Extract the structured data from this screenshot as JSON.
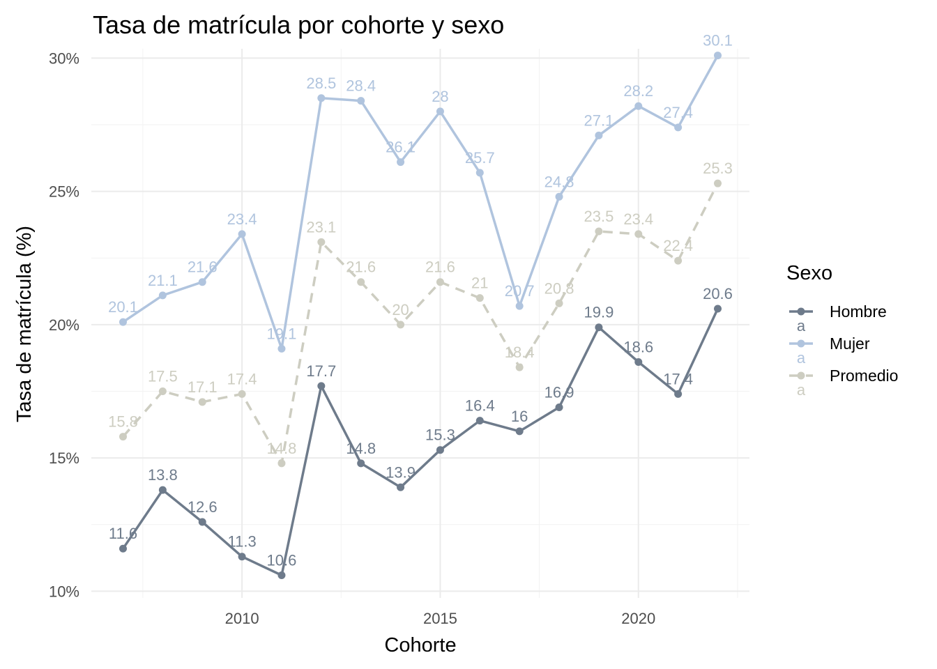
{
  "chart_data": {
    "type": "line",
    "title": "Tasa de matrícula por cohorte y sexo",
    "xlabel": "Cohorte",
    "ylabel": "Tasa de matrícula (%)",
    "x": [
      2007,
      2008,
      2009,
      2010,
      2011,
      2012,
      2013,
      2014,
      2015,
      2016,
      2017,
      2018,
      2019,
      2020,
      2021,
      2022
    ],
    "xlim": [
      2006.2,
      2022.8
    ],
    "ylim": [
      9.75,
      30.35
    ],
    "x_ticks": [
      2010,
      2015,
      2020
    ],
    "x_tick_labels": [
      "2010",
      "2015",
      "2020"
    ],
    "y_ticks": [
      10,
      15,
      20,
      25,
      30
    ],
    "y_tick_labels": [
      "10%",
      "15%",
      "20%",
      "25%",
      "30%"
    ],
    "grid": true,
    "legend": {
      "title": "Sexo",
      "position": "right",
      "key_glyph": "a"
    },
    "series": [
      {
        "name": "Hombre",
        "color": "#6e7b8b",
        "dashed": false,
        "values": [
          11.6,
          13.8,
          12.6,
          11.3,
          10.6,
          17.7,
          14.8,
          13.9,
          15.3,
          16.4,
          16.0,
          16.9,
          19.9,
          18.6,
          17.4,
          20.6
        ],
        "labels": [
          "11.6",
          "13.8",
          "12.6",
          "11.3",
          "10.6",
          "17.7",
          "14.8",
          "13.9",
          "15.3",
          "16.4",
          "16",
          "16.9",
          "19.9",
          "18.6",
          "17.4",
          "20.6"
        ]
      },
      {
        "name": "Mujer",
        "color": "#b0c4de",
        "dashed": false,
        "values": [
          20.1,
          21.1,
          21.6,
          23.4,
          19.1,
          28.5,
          28.4,
          26.1,
          28.0,
          25.7,
          20.7,
          24.8,
          27.1,
          28.2,
          27.4,
          30.1
        ],
        "labels": [
          "20.1",
          "21.1",
          "21.6",
          "23.4",
          "19.1",
          "28.5",
          "28.4",
          "26.1",
          "28",
          "25.7",
          "20.7",
          "24.8",
          "27.1",
          "28.2",
          "27.4",
          "30.1"
        ]
      },
      {
        "name": "Promedio",
        "color": "#cdcdc1",
        "dashed": true,
        "values": [
          15.8,
          17.5,
          17.1,
          17.4,
          14.8,
          23.1,
          21.6,
          20.0,
          21.6,
          21.0,
          18.4,
          20.8,
          23.5,
          23.4,
          22.4,
          25.3
        ],
        "labels": [
          "15.8",
          "17.5",
          "17.1",
          "17.4",
          "14.8",
          "23.1",
          "21.6",
          "20",
          "21.6",
          "21",
          "18.4",
          "20.8",
          "23.5",
          "23.4",
          "22.4",
          "25.3"
        ]
      }
    ]
  }
}
